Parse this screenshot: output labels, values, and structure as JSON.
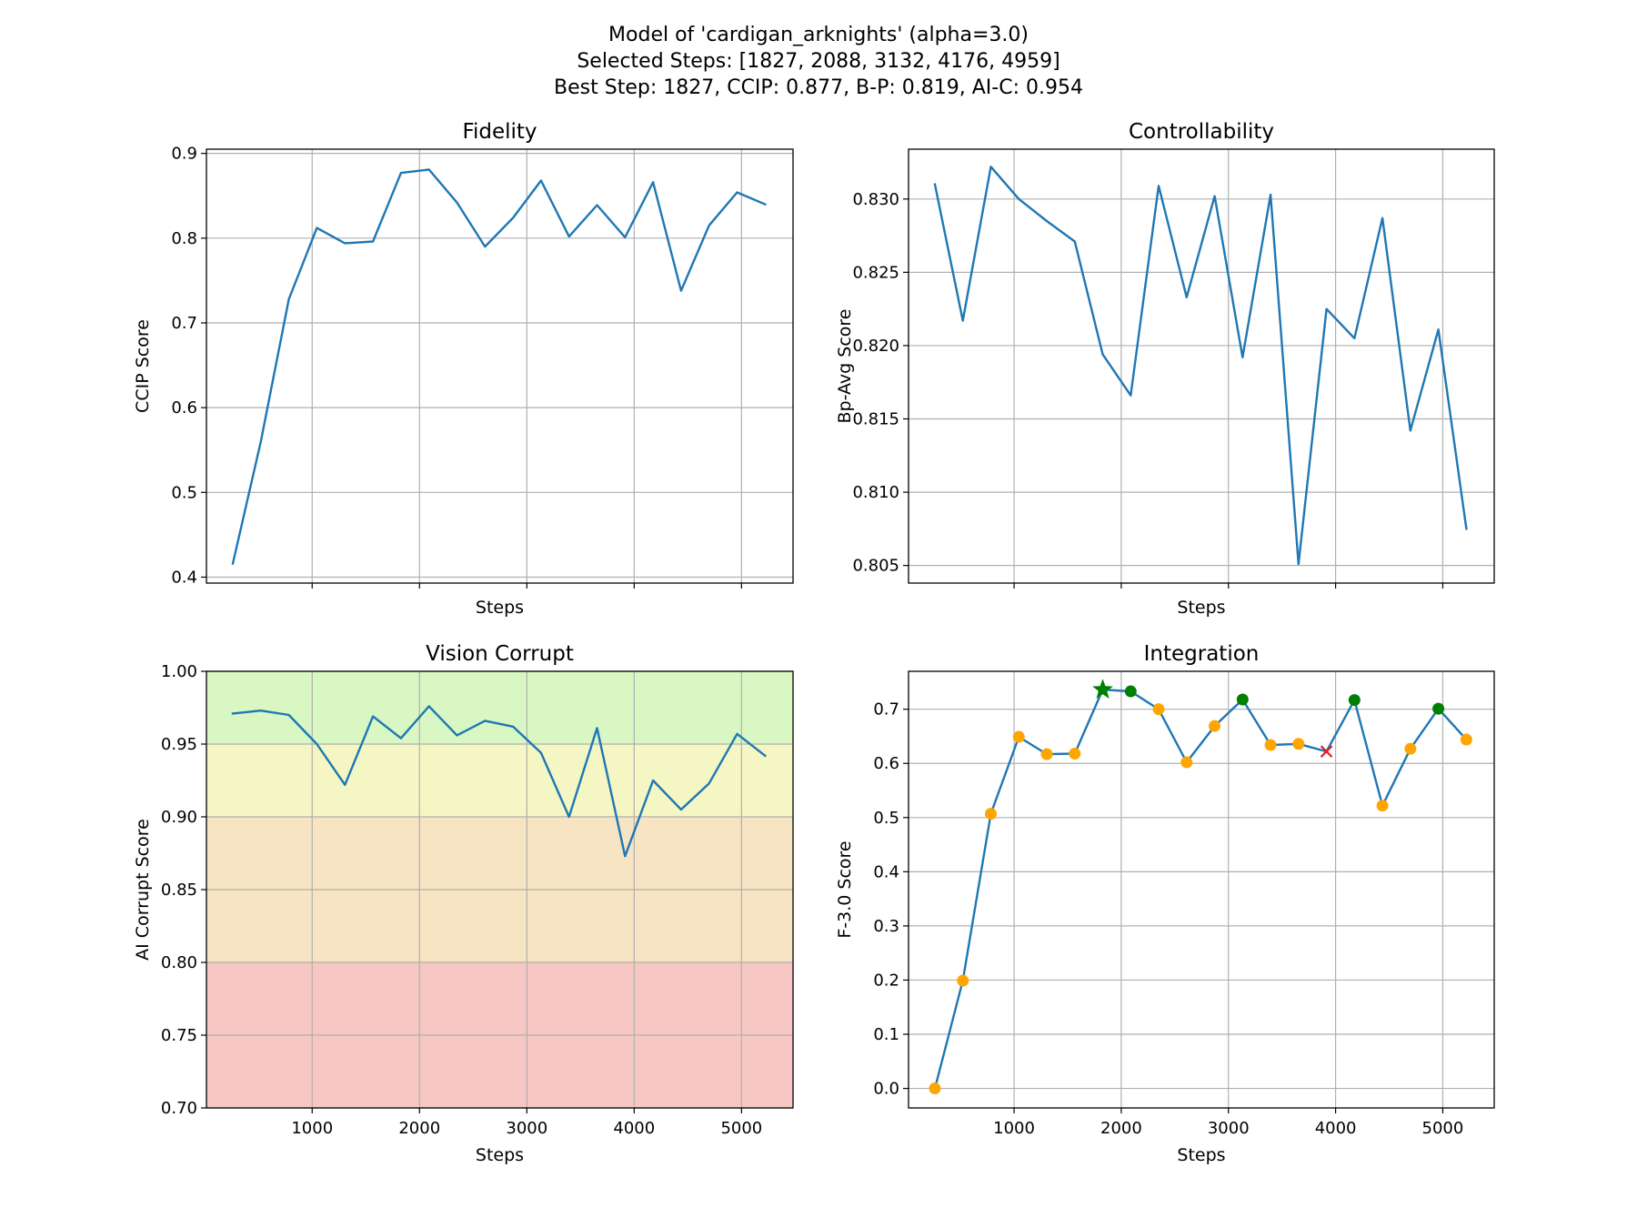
{
  "suptitle": [
    "Model of 'cardigan_arknights' (alpha=3.0)",
    "Selected Steps: [1827, 2088, 3132, 4176, 4959]",
    "Best Step: 1827, CCIP: 0.877, B-P: 0.819, AI-C: 0.954"
  ],
  "colors": {
    "line": "#1f77b4",
    "point": "#ffa500",
    "selected": "#008000",
    "best": "#008000",
    "worst": "#e41a1c",
    "band_good": "#d9f7c3",
    "band_ok": "#f4f7c3",
    "band_warn": "#f7e4c3",
    "band_bad": "#f7c8c3"
  },
  "chart_data": [
    {
      "id": "fidelity",
      "type": "line",
      "title": "Fidelity",
      "xlabel": "Steps",
      "ylabel": "CCIP Score",
      "xlim": [
        15,
        5480
      ],
      "ylim": [
        0.393,
        0.905
      ],
      "xticks": [
        1000,
        2000,
        3000,
        4000,
        5000
      ],
      "yticks": [
        0.4,
        0.5,
        0.6,
        0.7,
        0.8,
        0.9
      ],
      "ytick_labels": [
        "0.4",
        "0.5",
        "0.6",
        "0.7",
        "0.8",
        "0.9"
      ],
      "show_xtick_labels": false,
      "grid": true,
      "x": [
        261,
        522,
        783,
        1044,
        1305,
        1566,
        1827,
        2088,
        2349,
        2610,
        2871,
        3132,
        3393,
        3654,
        3915,
        4176,
        4437,
        4698,
        4959,
        5220
      ],
      "y": [
        0.416,
        0.56,
        0.728,
        0.812,
        0.794,
        0.796,
        0.877,
        0.881,
        0.842,
        0.79,
        0.824,
        0.868,
        0.802,
        0.839,
        0.801,
        0.866,
        0.738,
        0.815,
        0.854,
        0.84
      ]
    },
    {
      "id": "controllability",
      "type": "line",
      "title": "Controllability",
      "xlabel": "Steps",
      "ylabel": "Bp-Avg Score",
      "xlim": [
        15,
        5480
      ],
      "ylim": [
        0.8038,
        0.8334
      ],
      "xticks": [
        1000,
        2000,
        3000,
        4000,
        5000
      ],
      "yticks": [
        0.805,
        0.81,
        0.815,
        0.82,
        0.825,
        0.83
      ],
      "ytick_labels": [
        "0.805",
        "0.810",
        "0.815",
        "0.820",
        "0.825",
        "0.830"
      ],
      "show_xtick_labels": false,
      "grid": true,
      "x": [
        261,
        522,
        783,
        1044,
        1305,
        1566,
        1827,
        2088,
        2349,
        2610,
        2871,
        3132,
        3393,
        3654,
        3915,
        4176,
        4437,
        4698,
        4959,
        5220
      ],
      "y": [
        0.831,
        0.8217,
        0.8322,
        0.83,
        0.8285,
        0.8271,
        0.8194,
        0.8166,
        0.8309,
        0.8233,
        0.8302,
        0.8192,
        0.8303,
        0.8051,
        0.8225,
        0.8205,
        0.8287,
        0.8142,
        0.8211,
        0.8075
      ]
    },
    {
      "id": "vision-corrupt",
      "type": "line",
      "title": "Vision Corrupt",
      "xlabel": "Steps",
      "ylabel": "AI Corrupt Score",
      "xlim": [
        15,
        5480
      ],
      "ylim": [
        0.7,
        1.0
      ],
      "xticks": [
        1000,
        2000,
        3000,
        4000,
        5000
      ],
      "xtick_labels": [
        "1000",
        "2000",
        "3000",
        "4000",
        "5000"
      ],
      "yticks": [
        0.7,
        0.75,
        0.8,
        0.85,
        0.9,
        0.95,
        1.0
      ],
      "ytick_labels": [
        "0.70",
        "0.75",
        "0.80",
        "0.85",
        "0.90",
        "0.95",
        "1.00"
      ],
      "show_xtick_labels": true,
      "grid": true,
      "bands": [
        {
          "from": 0.95,
          "to": 1.0,
          "color_key": "band_good"
        },
        {
          "from": 0.9,
          "to": 0.95,
          "color_key": "band_ok"
        },
        {
          "from": 0.8,
          "to": 0.9,
          "color_key": "band_warn"
        },
        {
          "from": 0.7,
          "to": 0.8,
          "color_key": "band_bad"
        }
      ],
      "x": [
        261,
        522,
        783,
        1044,
        1305,
        1566,
        1827,
        2088,
        2349,
        2610,
        2871,
        3132,
        3393,
        3654,
        3915,
        4176,
        4437,
        4698,
        4959,
        5220
      ],
      "y": [
        0.971,
        0.973,
        0.97,
        0.95,
        0.922,
        0.969,
        0.954,
        0.976,
        0.956,
        0.966,
        0.962,
        0.944,
        0.9,
        0.961,
        0.873,
        0.925,
        0.905,
        0.923,
        0.957,
        0.942
      ]
    },
    {
      "id": "integration",
      "type": "line",
      "title": "Integration",
      "xlabel": "Steps",
      "ylabel": "F-3.0 Score",
      "xlim": [
        15,
        5480
      ],
      "ylim": [
        -0.036,
        0.77
      ],
      "xticks": [
        1000,
        2000,
        3000,
        4000,
        5000
      ],
      "xtick_labels": [
        "1000",
        "2000",
        "3000",
        "4000",
        "5000"
      ],
      "yticks": [
        0.0,
        0.1,
        0.2,
        0.3,
        0.4,
        0.5,
        0.6,
        0.7
      ],
      "ytick_labels": [
        "0.0",
        "0.1",
        "0.2",
        "0.3",
        "0.4",
        "0.5",
        "0.6",
        "0.7"
      ],
      "show_xtick_labels": true,
      "grid": true,
      "x": [
        261,
        522,
        783,
        1044,
        1305,
        1566,
        1827,
        2088,
        2349,
        2610,
        2871,
        3132,
        3393,
        3654,
        3915,
        4176,
        4437,
        4698,
        4959,
        5220
      ],
      "y": [
        0.0,
        0.199,
        0.507,
        0.649,
        0.617,
        0.618,
        0.736,
        0.733,
        0.7,
        0.602,
        0.669,
        0.718,
        0.634,
        0.636,
        0.622,
        0.717,
        0.522,
        0.627,
        0.701,
        0.644
      ],
      "markers": [
        "point",
        "point",
        "point",
        "point",
        "point",
        "point",
        "best",
        "selected",
        "point",
        "point",
        "point",
        "selected",
        "point",
        "point",
        "worst",
        "selected",
        "point",
        "point",
        "selected",
        "point"
      ]
    }
  ]
}
